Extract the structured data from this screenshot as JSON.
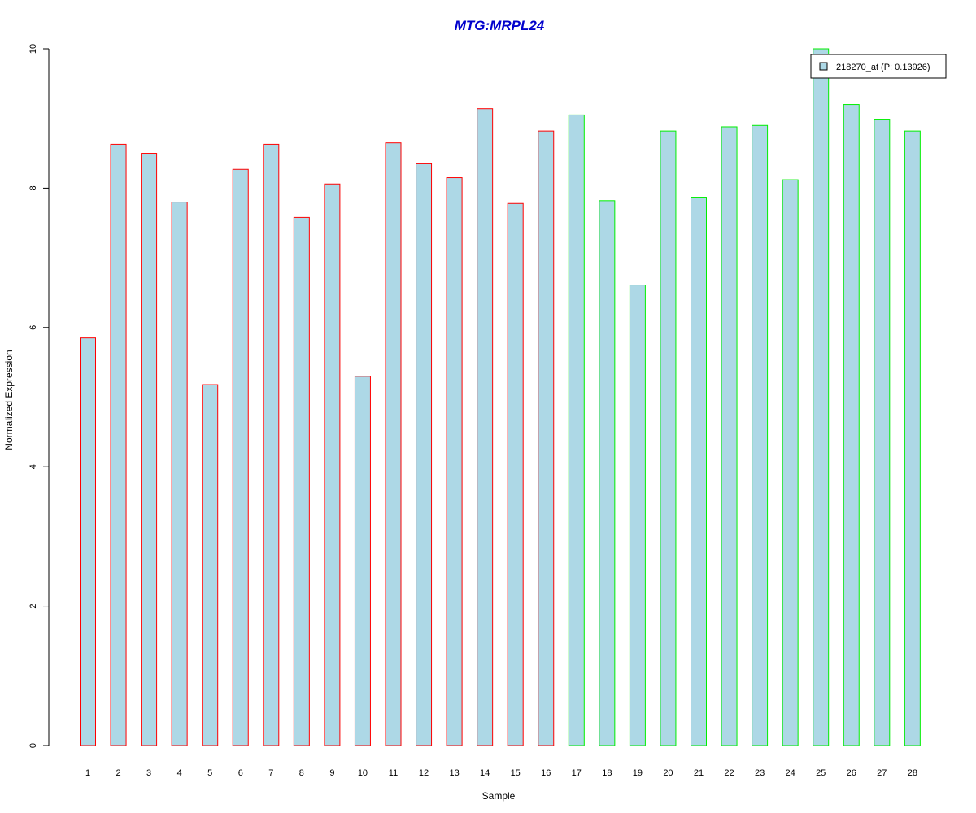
{
  "chart_data": {
    "type": "bar",
    "title": "MTG:MRPL24",
    "xlabel": "Sample",
    "ylabel": "Normalized Expression",
    "categories": [
      "1",
      "2",
      "3",
      "4",
      "5",
      "6",
      "7",
      "8",
      "9",
      "10",
      "11",
      "12",
      "13",
      "14",
      "15",
      "16",
      "17",
      "18",
      "19",
      "20",
      "21",
      "22",
      "23",
      "24",
      "25",
      "26",
      "27",
      "28"
    ],
    "series": [
      {
        "name": "218270_at (P: 0.13926)",
        "values": [
          5.85,
          8.63,
          8.5,
          7.8,
          5.18,
          8.27,
          8.63,
          7.58,
          8.06,
          5.3,
          8.65,
          8.35,
          8.15,
          9.14,
          7.78,
          8.82,
          9.05,
          7.82,
          6.61,
          8.82,
          7.87,
          8.88,
          8.9,
          8.12,
          10.0,
          9.2,
          8.99,
          8.82
        ]
      }
    ],
    "group_colors": [
      "#ff0000",
      "#ff0000",
      "#ff0000",
      "#ff0000",
      "#ff0000",
      "#ff0000",
      "#ff0000",
      "#ff0000",
      "#ff0000",
      "#ff0000",
      "#ff0000",
      "#ff0000",
      "#ff0000",
      "#ff0000",
      "#ff0000",
      "#ff0000",
      "#00ee00",
      "#00ee00",
      "#00ee00",
      "#00ee00",
      "#00ee00",
      "#00ee00",
      "#00ee00",
      "#00ee00",
      "#00ee00",
      "#00ee00",
      "#00ee00",
      "#00ee00"
    ],
    "bar_fill": "#add8e6",
    "title_color": "#0000cc",
    "yticks": [
      0,
      2,
      4,
      6,
      8,
      10
    ],
    "ylim": [
      0,
      10
    ],
    "grid": false,
    "legend_position": "top-right"
  }
}
